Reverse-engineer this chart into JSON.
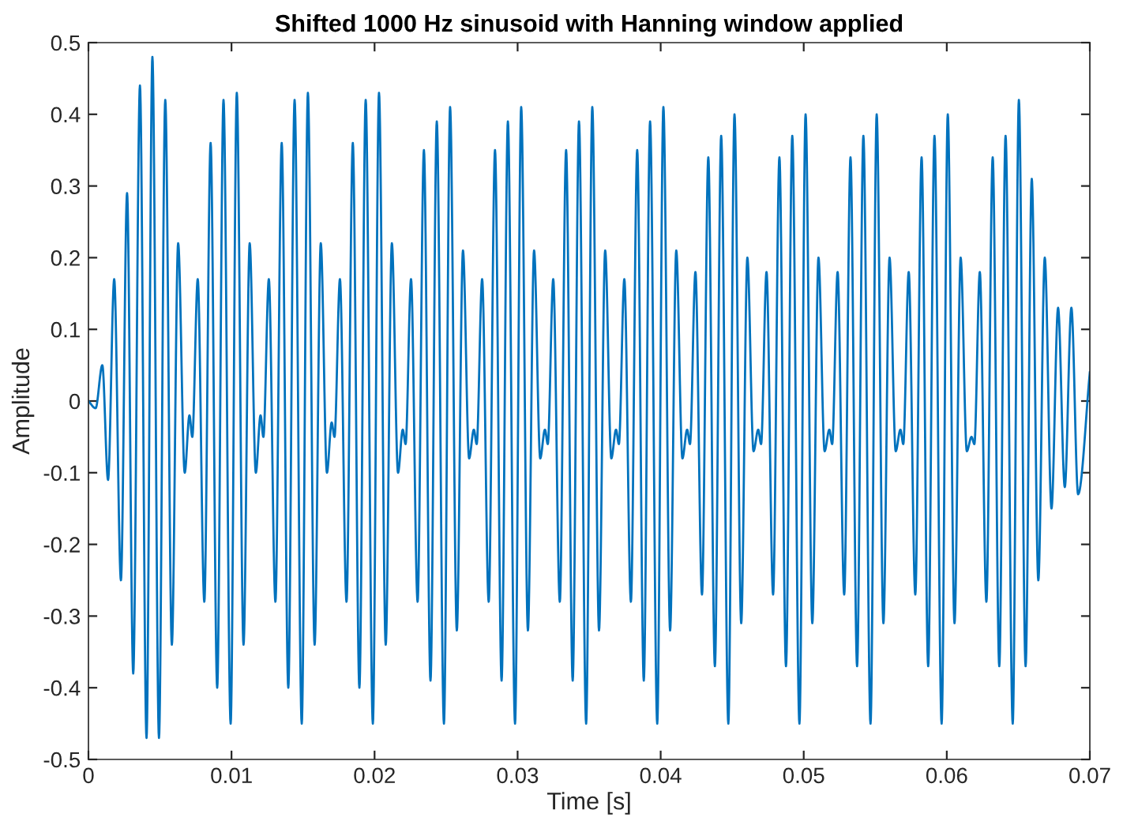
{
  "chart_data": {
    "type": "line",
    "title": "Shifted 1000 Hz sinusoid with Hanning window applied",
    "xlabel": "Time [s]",
    "ylabel": "Amplitude",
    "xlim": [
      0,
      0.07
    ],
    "ylim": [
      -0.5,
      0.5
    ],
    "xticks": [
      0,
      0.01,
      0.02,
      0.03,
      0.04,
      0.05,
      0.06,
      0.07
    ],
    "yticks": [
      -0.5,
      -0.4,
      -0.3,
      -0.2,
      -0.1,
      0,
      0.1,
      0.2,
      0.3,
      0.4,
      0.5
    ],
    "grid": false,
    "legend": false,
    "marker": "none",
    "line_style": "solid",
    "series": [
      {
        "color": "#0072bd",
        "x": [
          0,
          0.0005,
          0.00097,
          0.00137,
          0.0018,
          0.00227,
          0.0027,
          0.00313,
          0.0036,
          0.00406,
          0.00447,
          0.00493,
          0.00537,
          0.00583,
          0.00627,
          0.00673,
          0.00706,
          0.00726,
          0.00764,
          0.0081,
          0.00854,
          0.009,
          0.00944,
          0.00994,
          0.01037,
          0.01084,
          0.01127,
          0.0117,
          0.01203,
          0.01223,
          0.01261,
          0.01307,
          0.01351,
          0.01397,
          0.01441,
          0.01491,
          0.01534,
          0.01581,
          0.01624,
          0.01667,
          0.017,
          0.0172,
          0.01758,
          0.01804,
          0.01848,
          0.01894,
          0.01938,
          0.01988,
          0.02031,
          0.02078,
          0.02121,
          0.02164,
          0.02197,
          0.02217,
          0.02255,
          0.02301,
          0.02345,
          0.02391,
          0.02435,
          0.02485,
          0.02528,
          0.02575,
          0.02618,
          0.02661,
          0.02694,
          0.02714,
          0.02752,
          0.02798,
          0.02842,
          0.02888,
          0.02932,
          0.02982,
          0.03025,
          0.03072,
          0.03115,
          0.03158,
          0.03191,
          0.03211,
          0.03249,
          0.03295,
          0.03339,
          0.03385,
          0.03429,
          0.03479,
          0.03522,
          0.03569,
          0.03612,
          0.03655,
          0.03688,
          0.03708,
          0.03746,
          0.03792,
          0.03836,
          0.03882,
          0.03926,
          0.03976,
          0.04019,
          0.04066,
          0.04109,
          0.04152,
          0.04185,
          0.04205,
          0.04243,
          0.04289,
          0.04333,
          0.04379,
          0.04423,
          0.04473,
          0.04516,
          0.04563,
          0.04606,
          0.04649,
          0.04682,
          0.04702,
          0.0474,
          0.04786,
          0.0483,
          0.04876,
          0.0492,
          0.0497,
          0.05013,
          0.0506,
          0.05103,
          0.05146,
          0.05179,
          0.05199,
          0.05237,
          0.05283,
          0.05327,
          0.05373,
          0.05417,
          0.05467,
          0.0551,
          0.05557,
          0.056,
          0.05643,
          0.05676,
          0.05696,
          0.05734,
          0.0578,
          0.05824,
          0.0587,
          0.05914,
          0.05964,
          0.06007,
          0.06054,
          0.06097,
          0.0614,
          0.06173,
          0.06193,
          0.06231,
          0.06277,
          0.06321,
          0.06367,
          0.06411,
          0.06461,
          0.06504,
          0.06551,
          0.06594,
          0.0664,
          0.06685,
          0.06732,
          0.06778,
          0.06825,
          0.06871,
          0.06918,
          0.07
        ],
        "values": [
          0,
          -0.01,
          0.05,
          -0.11,
          0.17,
          -0.25,
          0.29,
          -0.38,
          0.44,
          -0.47,
          0.48,
          -0.47,
          0.42,
          -0.34,
          0.22,
          -0.1,
          -0.02,
          -0.05,
          0.17,
          -0.28,
          0.36,
          -0.4,
          0.42,
          -0.45,
          0.43,
          -0.34,
          0.22,
          -0.1,
          -0.02,
          -0.05,
          0.17,
          -0.28,
          0.36,
          -0.4,
          0.42,
          -0.45,
          0.43,
          -0.34,
          0.22,
          -0.1,
          -0.03,
          -0.05,
          0.17,
          -0.28,
          0.36,
          -0.4,
          0.42,
          -0.45,
          0.43,
          -0.34,
          0.22,
          -0.1,
          -0.04,
          -0.06,
          0.17,
          -0.28,
          0.35,
          -0.39,
          0.39,
          -0.45,
          0.41,
          -0.32,
          0.21,
          -0.08,
          -0.04,
          -0.06,
          0.17,
          -0.28,
          0.35,
          -0.39,
          0.39,
          -0.45,
          0.41,
          -0.32,
          0.21,
          -0.08,
          -0.04,
          -0.06,
          0.17,
          -0.28,
          0.35,
          -0.39,
          0.39,
          -0.45,
          0.41,
          -0.32,
          0.21,
          -0.08,
          -0.04,
          -0.06,
          0.17,
          -0.28,
          0.35,
          -0.39,
          0.39,
          -0.45,
          0.41,
          -0.32,
          0.21,
          -0.08,
          -0.04,
          -0.06,
          0.18,
          -0.27,
          0.34,
          -0.37,
          0.37,
          -0.45,
          0.4,
          -0.31,
          0.2,
          -0.07,
          -0.04,
          -0.06,
          0.18,
          -0.27,
          0.34,
          -0.37,
          0.37,
          -0.45,
          0.4,
          -0.31,
          0.2,
          -0.07,
          -0.04,
          -0.06,
          0.18,
          -0.27,
          0.34,
          -0.37,
          0.37,
          -0.45,
          0.4,
          -0.31,
          0.2,
          -0.07,
          -0.04,
          -0.06,
          0.18,
          -0.27,
          0.34,
          -0.37,
          0.37,
          -0.45,
          0.4,
          -0.31,
          0.2,
          -0.07,
          -0.05,
          -0.06,
          0.18,
          -0.28,
          0.34,
          -0.37,
          0.37,
          -0.45,
          0.42,
          -0.37,
          0.31,
          -0.25,
          0.2,
          -0.15,
          0.13,
          -0.12,
          0.13,
          -0.13,
          0.04
        ]
      }
    ]
  }
}
